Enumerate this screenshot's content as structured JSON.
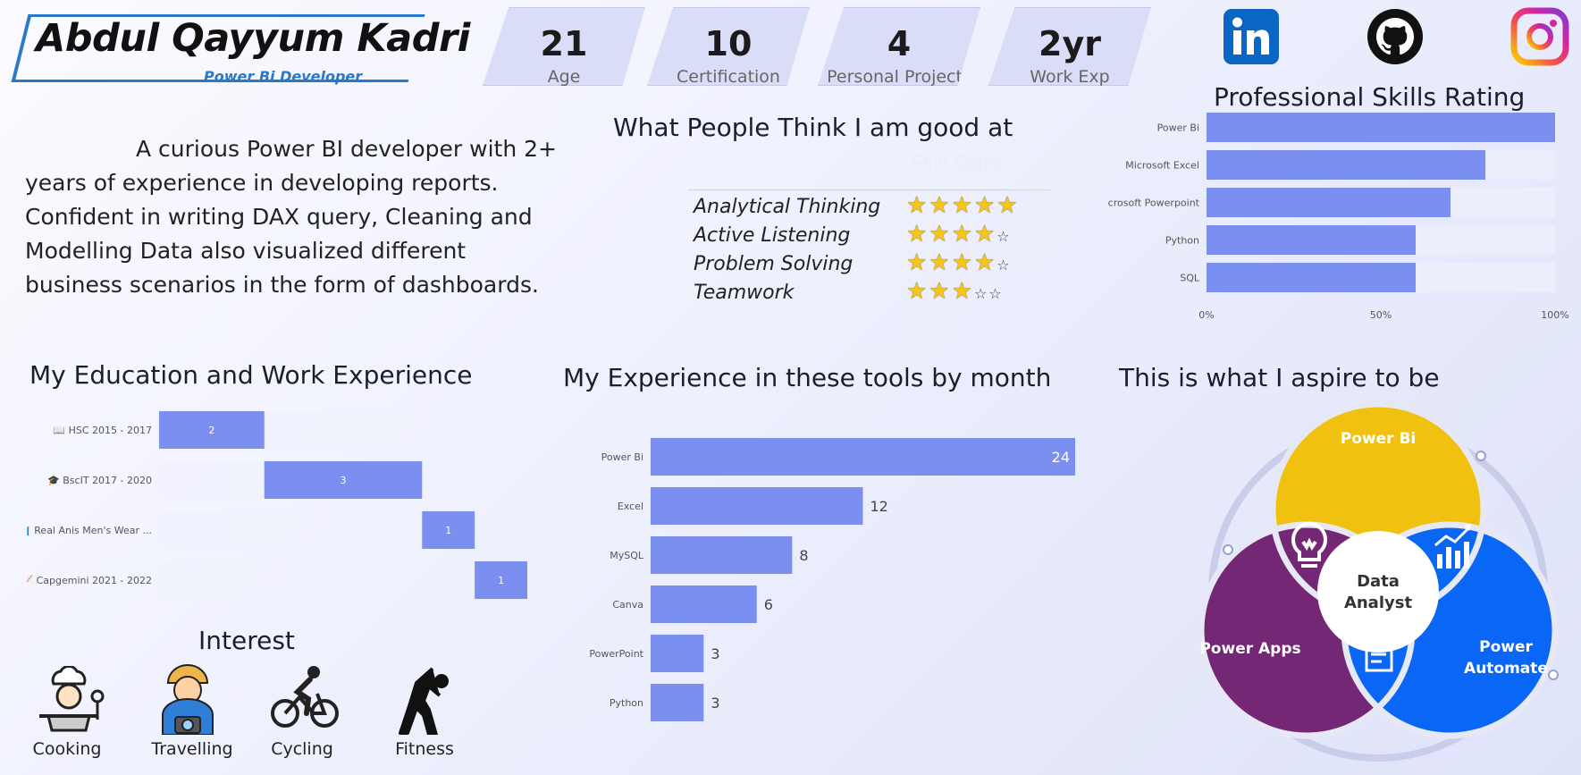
{
  "header": {
    "name": "Abdul Qayyum Kadri",
    "title": "Power Bi Developer"
  },
  "kpis": [
    {
      "value": "21",
      "label": "Age"
    },
    {
      "value": "10",
      "label": "Certification"
    },
    {
      "value": "4",
      "label": "Personal Projects"
    },
    {
      "value": "2yr",
      "label": "Work Exp"
    }
  ],
  "social": [
    {
      "icon": "linkedin-icon",
      "color": "#0a66c2"
    },
    {
      "icon": "github-icon",
      "color": "#111111"
    },
    {
      "icon": "instagram-icon",
      "color": "#d6249f"
    }
  ],
  "about": {
    "text": "A curious Power BI developer with 2+ years of experience in developing reports. Confident in writing DAX query, Cleaning and Modelling Data also visualized different business scenarios in the form of dashboards."
  },
  "ratings": {
    "heading": "What People Think I am good at",
    "ghost_header": "Skill Stars",
    "rows": [
      {
        "skill": "Analytical Thinking",
        "stars": 5,
        "max": 5
      },
      {
        "skill": "Active Listening",
        "stars": 4,
        "max": 5
      },
      {
        "skill": "Problem Solving",
        "stars": 4,
        "max": 5
      },
      {
        "skill": "Teamwork",
        "stars": 3,
        "max": 5
      }
    ]
  },
  "skills_chart": {
    "heading": "Professional Skills Rating",
    "chart_data": {
      "type": "bar",
      "orientation": "horizontal",
      "categories": [
        "Power Bi",
        "Microsoft Excel",
        "Microsoft Powerpoint",
        "Python",
        "SQL"
      ],
      "values": [
        100,
        80,
        70,
        60,
        60
      ],
      "xlim": [
        0,
        100
      ],
      "ticks": [
        "0%",
        "50%",
        "100%"
      ],
      "color": "#7b8ff0",
      "track_color": "#eceefb"
    }
  },
  "education": {
    "heading": "My Education and Work Experience",
    "chart_data": {
      "type": "bar",
      "subtype": "gantt",
      "categories": [
        "📖 HSC 2015 - 2017",
        "🎓 BscIT 2017 - 2020",
        "📊 Real Anis Men's Wear ...",
        "📈 Capgemini 2021 - 2022"
      ],
      "start": [
        0,
        2,
        5,
        6
      ],
      "values": [
        2,
        3,
        1,
        1
      ],
      "xlim": [
        0,
        7
      ],
      "color": "#7b8ff0"
    }
  },
  "tools_chart": {
    "heading": "My Experience in these tools by month",
    "chart_data": {
      "type": "bar",
      "orientation": "horizontal",
      "categories": [
        "Power Bi",
        "Excel",
        "MySQL",
        "Canva",
        "PowerPoint",
        "Python"
      ],
      "values": [
        24,
        12,
        8,
        6,
        3,
        3
      ],
      "xlim": [
        0,
        24
      ],
      "color": "#7b8ff0"
    }
  },
  "aspire": {
    "heading": "This is what I aspire to be",
    "circles": [
      {
        "label": "Power Bi",
        "color": "#f0c20f"
      },
      {
        "label": "Power Apps",
        "color": "#742774"
      },
      {
        "label": "Power Automate",
        "color": "#0a66f5"
      }
    ],
    "center_label": "Data Analyst"
  },
  "interest": {
    "heading": "Interest",
    "items": [
      {
        "label": "Cooking",
        "icon": "cooking-icon"
      },
      {
        "label": "Travelling",
        "icon": "travelling-icon"
      },
      {
        "label": "Cycling",
        "icon": "cycling-icon"
      },
      {
        "label": "Fitness",
        "icon": "fitness-icon"
      }
    ]
  }
}
